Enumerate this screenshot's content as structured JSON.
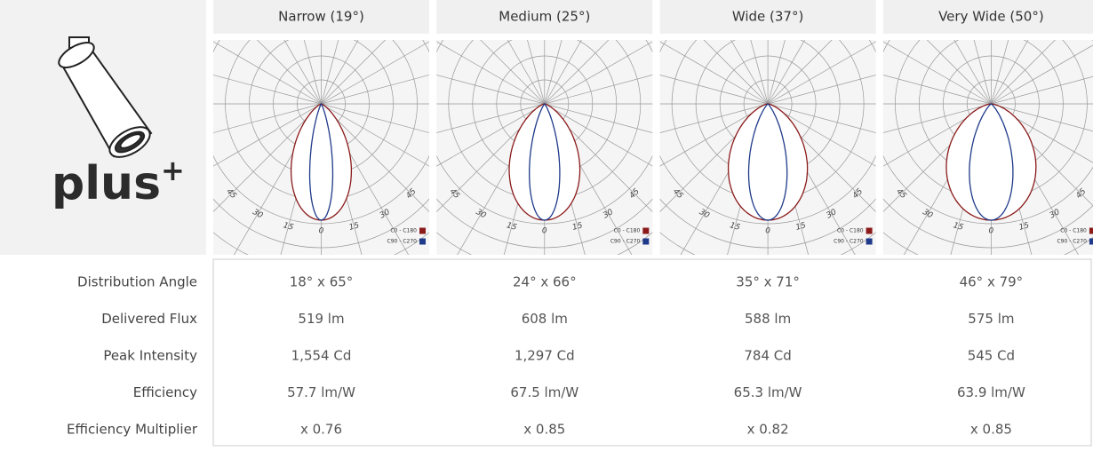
{
  "logo": {
    "text": "plus",
    "superscript": "+"
  },
  "columns": [
    "Narrow (19°)",
    "Medium (25°)",
    "Wide (37°)",
    "Very Wide (50°)"
  ],
  "polar": {
    "angle_labels": [
      "45",
      "30",
      "15",
      "0",
      "15",
      "30",
      "45"
    ],
    "legend": [
      "C0 - C180",
      "C90 - C270"
    ]
  },
  "table": {
    "rows": [
      {
        "label": "Distribution Angle",
        "values": [
          "18° x 65°",
          "24° x 66°",
          "35° x 71°",
          "46° x 79°"
        ]
      },
      {
        "label": "Delivered Flux",
        "values": [
          "519 lm",
          "608 lm",
          "588 lm",
          "575 lm"
        ]
      },
      {
        "label": "Peak Intensity",
        "values": [
          "1,554 Cd",
          "1,297 Cd",
          "784 Cd",
          "545 Cd"
        ]
      },
      {
        "label": "Efficiency",
        "values": [
          "57.7 lm/W",
          "67.5 lm/W",
          "65.3 lm/W",
          "63.9 lm/W"
        ]
      },
      {
        "label": "Efficiency Multiplier",
        "values": [
          "x 0.76",
          "x 0.85",
          "x 0.82",
          "x 0.85"
        ]
      }
    ]
  }
}
